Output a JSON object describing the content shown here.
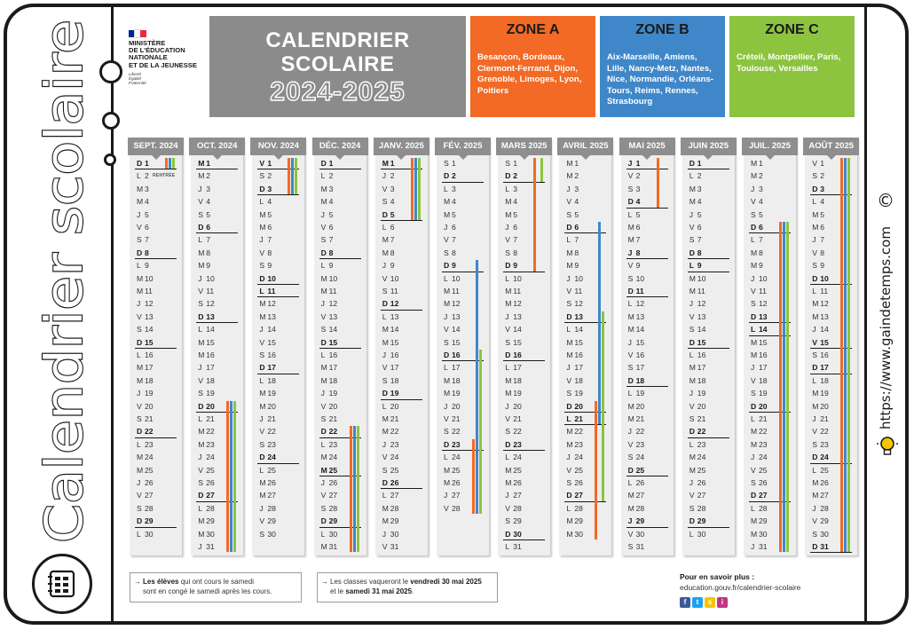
{
  "side": {
    "title": "Calendrier scolaire",
    "site": "https://www.gaindetemps.com",
    "copyright": "©"
  },
  "ministry": {
    "lines": [
      "MINISTÈRE",
      "DE L'ÉDUCATION",
      "NATIONALE",
      "ET DE LA JEUNESSE"
    ],
    "motto": [
      "Liberté",
      "Égalité",
      "Fraternité"
    ],
    "flag_colors": [
      "#002395",
      "#ffffff",
      "#ed2939"
    ]
  },
  "title": {
    "line1": "CALENDRIER",
    "line2": "SCOLAIRE",
    "years": "2024-2025"
  },
  "colors": {
    "zoneA": "#f26a25",
    "zoneB": "#3f87c8",
    "zoneC": "#8cc43f",
    "title_bg": "#8b8b8b",
    "month_header": "#8e8e8e"
  },
  "zones": [
    {
      "name": "ZONE A",
      "key": "zoneA",
      "cities": "Besançon, Bordeaux, Clermont-Ferrand, Dijon, Grenoble, Limoges, Lyon, Poitiers"
    },
    {
      "name": "ZONE B",
      "key": "zoneB",
      "cities": "Aix-Marseille, Amiens, Lille, Nancy-Metz, Nantes, Nice, Normandie, Orléans-Tours, Reims, Rennes, Strasbourg"
    },
    {
      "name": "ZONE C",
      "key": "zoneC",
      "cities": "Créteil, Montpellier, Paris, Toulouse, Versailles"
    }
  ],
  "months": [
    {
      "label": "SEPT. 2024",
      "first": 0,
      "days": 30,
      "holidays": []
    },
    {
      "label": "OCT. 2024",
      "first": 2,
      "days": 31,
      "holidays": [
        1
      ]
    },
    {
      "label": "NOV. 2024",
      "first": 5,
      "days": 30,
      "holidays": [
        1,
        11
      ]
    },
    {
      "label": "DÉC. 2024",
      "first": 0,
      "days": 31,
      "holidays": [
        25
      ]
    },
    {
      "label": "JANV. 2025",
      "first": 3,
      "days": 31,
      "holidays": [
        1
      ]
    },
    {
      "label": "FÉV. 2025",
      "first": 6,
      "days": 28,
      "holidays": []
    },
    {
      "label": "MARS 2025",
      "first": 6,
      "days": 31,
      "holidays": []
    },
    {
      "label": "AVRIL 2025",
      "first": 2,
      "days": 30,
      "holidays": [
        21
      ]
    },
    {
      "label": "MAI 2025",
      "first": 4,
      "days": 31,
      "holidays": [
        1,
        8,
        29
      ]
    },
    {
      "label": "JUIN 2025",
      "first": 0,
      "days": 30,
      "holidays": [
        9
      ]
    },
    {
      "label": "JUIL. 2025",
      "first": 2,
      "days": 31,
      "holidays": [
        14
      ]
    },
    {
      "label": "AOÛT 2025",
      "first": 5,
      "days": 31,
      "holidays": [
        15
      ]
    }
  ],
  "day_letters": [
    "D",
    "L",
    "M",
    "M",
    "J",
    "V",
    "S"
  ],
  "rentree": {
    "month": 0,
    "day": 2,
    "label": "RENTRÉE"
  },
  "periods": [
    {
      "zone": "zoneA",
      "month": 0,
      "from": 1,
      "to": 1
    },
    {
      "zone": "zoneB",
      "month": 0,
      "from": 1,
      "to": 1
    },
    {
      "zone": "zoneC",
      "month": 0,
      "from": 1,
      "to": 1
    },
    {
      "zone": "zoneA",
      "month": 1,
      "from": 20,
      "to": 31
    },
    {
      "zone": "zoneB",
      "month": 1,
      "from": 20,
      "to": 31
    },
    {
      "zone": "zoneC",
      "month": 1,
      "from": 20,
      "to": 31
    },
    {
      "zone": "zoneA",
      "month": 2,
      "from": 1,
      "to": 3
    },
    {
      "zone": "zoneB",
      "month": 2,
      "from": 1,
      "to": 3
    },
    {
      "zone": "zoneC",
      "month": 2,
      "from": 1,
      "to": 3
    },
    {
      "zone": "zoneA",
      "month": 3,
      "from": 22,
      "to": 31
    },
    {
      "zone": "zoneB",
      "month": 3,
      "from": 22,
      "to": 31
    },
    {
      "zone": "zoneC",
      "month": 3,
      "from": 22,
      "to": 31
    },
    {
      "zone": "zoneA",
      "month": 4,
      "from": 1,
      "to": 5
    },
    {
      "zone": "zoneB",
      "month": 4,
      "from": 1,
      "to": 5
    },
    {
      "zone": "zoneC",
      "month": 4,
      "from": 1,
      "to": 5
    },
    {
      "zone": "zoneB",
      "month": 5,
      "from": 9,
      "to": 28
    },
    {
      "zone": "zoneC",
      "month": 5,
      "from": 16,
      "to": 28
    },
    {
      "zone": "zoneA",
      "month": 5,
      "from": 23,
      "to": 28
    },
    {
      "zone": "zoneA",
      "month": 6,
      "from": 1,
      "to": 9
    },
    {
      "zone": "zoneC",
      "month": 6,
      "from": 1,
      "to": 2
    },
    {
      "zone": "zoneB",
      "month": 7,
      "from": 6,
      "to": 21
    },
    {
      "zone": "zoneC",
      "month": 7,
      "from": 13,
      "to": 27
    },
    {
      "zone": "zoneA",
      "month": 7,
      "from": 20,
      "to": 30
    },
    {
      "zone": "zoneA",
      "month": 8,
      "from": 1,
      "to": 4
    },
    {
      "zone": "zoneA",
      "month": 10,
      "from": 6,
      "to": 31
    },
    {
      "zone": "zoneB",
      "month": 10,
      "from": 6,
      "to": 31
    },
    {
      "zone": "zoneC",
      "month": 10,
      "from": 6,
      "to": 31
    },
    {
      "zone": "zoneA",
      "month": 11,
      "from": 1,
      "to": 31
    },
    {
      "zone": "zoneB",
      "month": 11,
      "from": 1,
      "to": 31
    },
    {
      "zone": "zoneC",
      "month": 11,
      "from": 1,
      "to": 31
    }
  ],
  "footnotes": [
    {
      "pre": "",
      "bold1": "Les élèves",
      "mid": " qui ont cours le samedi",
      "line2": "sont en congé le samedi après les cours.",
      "bold2": "",
      "post": ""
    },
    {
      "pre": "Les classes vaqueront le ",
      "bold1": "vendredi 30 mai 2025",
      "mid": "",
      "line2": "et le ",
      "bold2": "samedi 31 mai 2025",
      "post": "."
    }
  ],
  "info": {
    "heading": "Pour en savoir plus :",
    "url": "education.gouv.fr/calendrier-scolaire",
    "socials": [
      "f",
      "t",
      "s",
      "i"
    ],
    "social_colors": [
      "#3b5998",
      "#1da1f2",
      "#f7c600",
      "#c13584"
    ]
  }
}
